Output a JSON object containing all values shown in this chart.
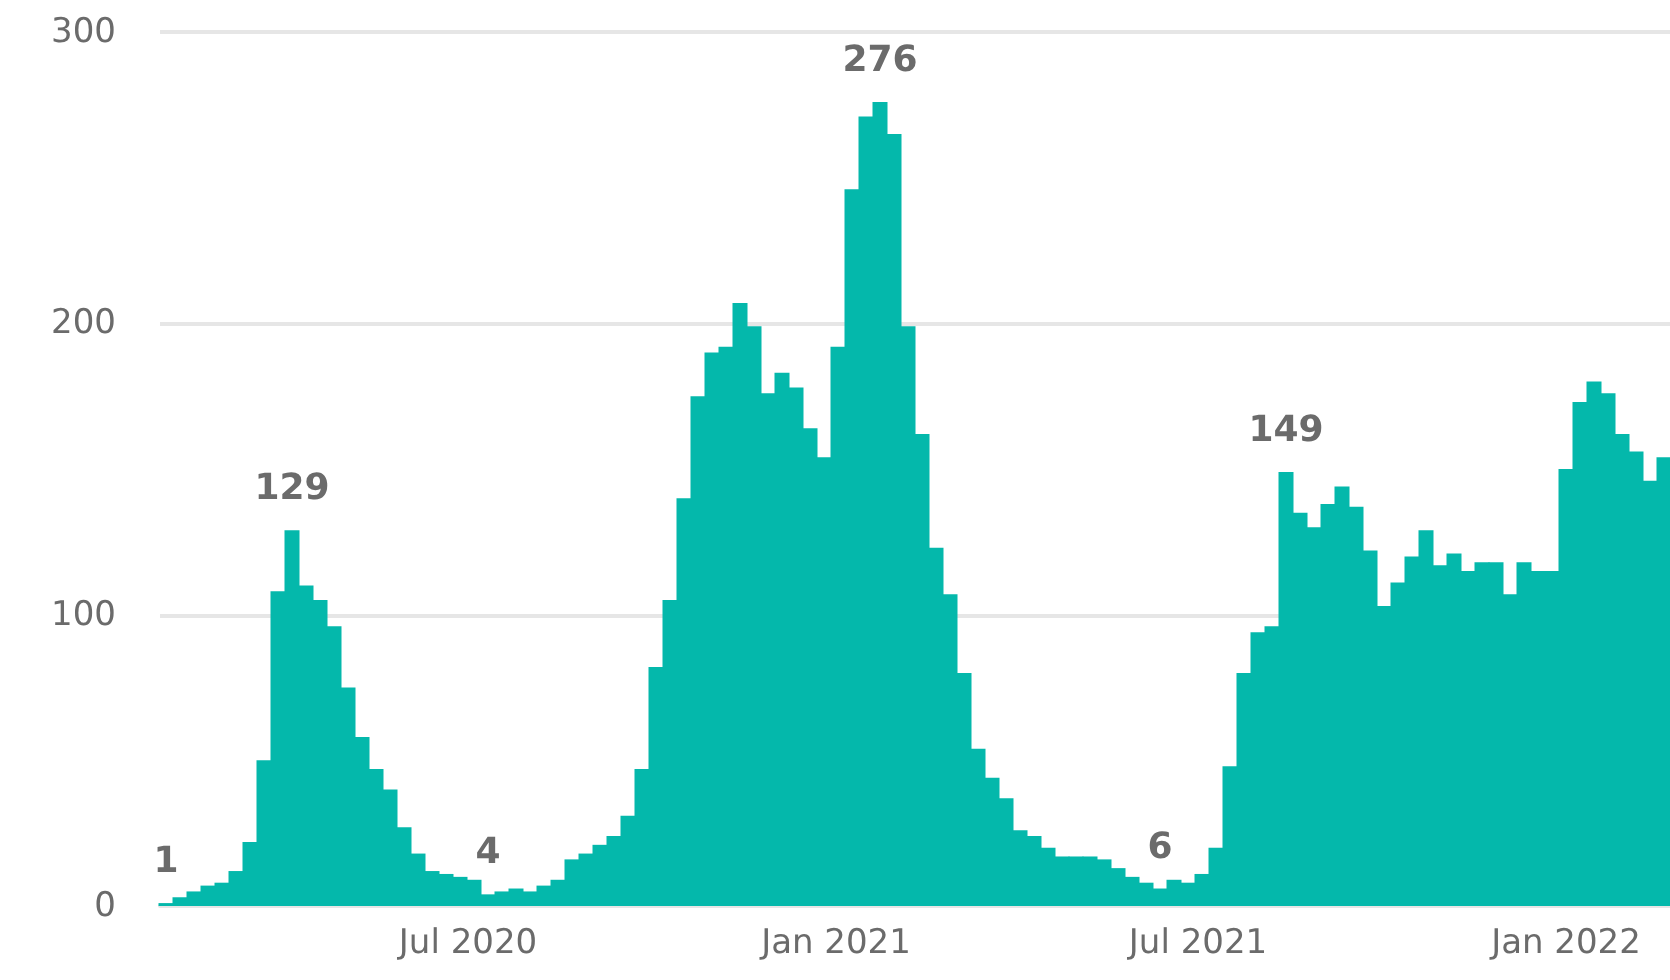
{
  "chart_data": {
    "type": "bar",
    "x": [
      "2020-02-01",
      "2020-02-08",
      "2020-02-15",
      "2020-02-22",
      "2020-02-29",
      "2020-03-07",
      "2020-03-14",
      "2020-03-21",
      "2020-03-28",
      "2020-04-04",
      "2020-04-11",
      "2020-04-18",
      "2020-04-25",
      "2020-05-02",
      "2020-05-09",
      "2020-05-16",
      "2020-05-23",
      "2020-05-30",
      "2020-06-06",
      "2020-06-13",
      "2020-06-20",
      "2020-06-27",
      "2020-07-04",
      "2020-07-11",
      "2020-07-18",
      "2020-07-25",
      "2020-08-01",
      "2020-08-08",
      "2020-08-15",
      "2020-08-22",
      "2020-08-29",
      "2020-09-05",
      "2020-09-12",
      "2020-09-19",
      "2020-09-26",
      "2020-10-03",
      "2020-10-10",
      "2020-10-17",
      "2020-10-24",
      "2020-10-31",
      "2020-11-07",
      "2020-11-14",
      "2020-11-21",
      "2020-11-28",
      "2020-12-05",
      "2020-12-12",
      "2020-12-19",
      "2020-12-26",
      "2021-01-02",
      "2021-01-09",
      "2021-01-16",
      "2021-01-23",
      "2021-01-30",
      "2021-02-06",
      "2021-02-13",
      "2021-02-20",
      "2021-02-27",
      "2021-03-06",
      "2021-03-13",
      "2021-03-20",
      "2021-03-27",
      "2021-04-03",
      "2021-04-10",
      "2021-04-17",
      "2021-04-24",
      "2021-05-01",
      "2021-05-08",
      "2021-05-15",
      "2021-05-22",
      "2021-05-29",
      "2021-06-05",
      "2021-06-12",
      "2021-06-19",
      "2021-06-26",
      "2021-07-03",
      "2021-07-10",
      "2021-07-17",
      "2021-07-24",
      "2021-07-31",
      "2021-08-07",
      "2021-08-14",
      "2021-08-21",
      "2021-08-28",
      "2021-09-04",
      "2021-09-11",
      "2021-09-18",
      "2021-09-25",
      "2021-10-02",
      "2021-10-09",
      "2021-10-16",
      "2021-10-23",
      "2021-10-30",
      "2021-11-06",
      "2021-11-13",
      "2021-11-20",
      "2021-11-27",
      "2021-12-04",
      "2021-12-11",
      "2021-12-18",
      "2021-12-25",
      "2022-01-01",
      "2022-01-08",
      "2022-01-15",
      "2022-01-22",
      "2022-01-29",
      "2022-02-05",
      "2022-02-12",
      "2022-02-19"
    ],
    "values": [
      1,
      3,
      5,
      7,
      8,
      12,
      22,
      50,
      108,
      129,
      110,
      105,
      96,
      75,
      58,
      47,
      40,
      27,
      18,
      12,
      11,
      10,
      9,
      4,
      5,
      6,
      5,
      7,
      9,
      16,
      18,
      21,
      24,
      31,
      47,
      82,
      105,
      140,
      175,
      190,
      192,
      207,
      199,
      176,
      183,
      178,
      164,
      154,
      192,
      246,
      271,
      276,
      265,
      199,
      162,
      123,
      107,
      80,
      54,
      44,
      37,
      26,
      24,
      20,
      17,
      17,
      17,
      16,
      13,
      10,
      8,
      6,
      9,
      8,
      11,
      20,
      48,
      80,
      94,
      96,
      149,
      135,
      130,
      138,
      144,
      137,
      122,
      103,
      111,
      120,
      129,
      117,
      121,
      115,
      118,
      118,
      107,
      118,
      115,
      115,
      150,
      173,
      180,
      176,
      162,
      156,
      146,
      154
    ],
    "value_labels": [
      "1",
      null,
      null,
      null,
      null,
      null,
      null,
      null,
      null,
      "129",
      null,
      null,
      null,
      null,
      null,
      null,
      null,
      null,
      null,
      null,
      null,
      null,
      null,
      "4",
      null,
      null,
      null,
      null,
      null,
      null,
      null,
      null,
      null,
      null,
      null,
      null,
      null,
      null,
      null,
      null,
      null,
      null,
      null,
      null,
      null,
      null,
      null,
      null,
      null,
      null,
      null,
      "276",
      null,
      null,
      null,
      null,
      null,
      null,
      null,
      null,
      null,
      null,
      null,
      null,
      null,
      null,
      null,
      null,
      null,
      null,
      null,
      "6",
      null,
      null,
      null,
      null,
      null,
      null,
      null,
      null,
      "149",
      null,
      null,
      null,
      null,
      null,
      null,
      null,
      null,
      null,
      null,
      null,
      null,
      null,
      null,
      null,
      null,
      null,
      null,
      null,
      null,
      null,
      null,
      null,
      null,
      null,
      null,
      null
    ],
    "color": "#04b8ab",
    "xlim": [
      "2020-01-29",
      "2022-02-22"
    ],
    "xticks": [
      {
        "value": "2020-07-01",
        "label": "Jul 2020"
      },
      {
        "value": "2021-01-01",
        "label": "Jan 2021"
      },
      {
        "value": "2021-07-01",
        "label": "Jul 2021"
      },
      {
        "value": "2022-01-01",
        "label": "Jan 2022"
      }
    ],
    "ylim": [
      0,
      300
    ],
    "yticks": [
      0,
      100,
      200,
      300
    ],
    "grid": "y"
  }
}
